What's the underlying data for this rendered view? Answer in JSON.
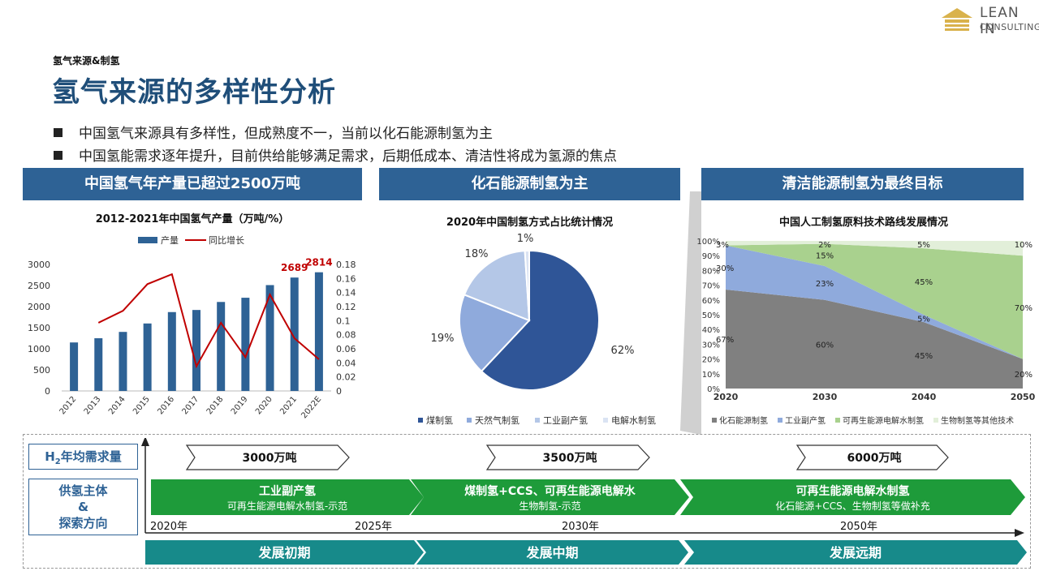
{
  "header": {
    "kicker": "氢气来源&制氢",
    "title": "氢气来源的多样性分析",
    "logo_line1": "LEAN IN",
    "logo_line2": "CONSULTING"
  },
  "bullets": [
    "中国氢气来源具有多样性，但成熟度不一，当前以化石能源制氢为主",
    "中国氢能需求逐年提升，目前供给能够满足需求，后期低成本、清洁性将成为氢源的焦点"
  ],
  "panels": {
    "p1_head": "中国氢气年产量已超过2500万吨",
    "p2_head": "化石能源制氢为主",
    "p3_head": "清洁能源制氢为最终目标"
  },
  "chart_data": [
    {
      "type": "bar",
      "title": "2012-2021年中国氢气产量（万吨/%）",
      "categories": [
        "2012",
        "2013",
        "2014",
        "2015",
        "2016",
        "2017",
        "2018",
        "2019",
        "2020",
        "2021",
        "2022E"
      ],
      "series": [
        {
          "name": "产量",
          "type": "bar",
          "axis": "left",
          "values": [
            1150,
            1250,
            1400,
            1600,
            1870,
            1920,
            2110,
            2210,
            2510,
            2689,
            2814
          ]
        },
        {
          "name": "同比增长",
          "type": "line",
          "axis": "right",
          "values": [
            null,
            0.097,
            0.114,
            0.152,
            0.166,
            0.035,
            0.097,
            0.048,
            0.137,
            0.075,
            0.045
          ]
        }
      ],
      "data_labels": [
        {
          "index": 9,
          "text": "2689"
        },
        {
          "index": 10,
          "text": "2814"
        }
      ],
      "ylim_left": [
        0,
        3000
      ],
      "yticks_left": [
        "0",
        "500",
        "1000",
        "1500",
        "2000",
        "2500",
        "3000"
      ],
      "ylim_right": [
        0,
        0.18
      ],
      "yticks_right": [
        "0",
        "0.02",
        "0.04",
        "0.06",
        "0.08",
        "0.1",
        "0.12",
        "0.14",
        "0.16",
        "0.18"
      ],
      "legend_position": "top",
      "colors": {
        "bar": "#2e6295",
        "line": "#c00000"
      }
    },
    {
      "type": "pie",
      "title": "2020年中国制氢方式占比统计情况",
      "slices": [
        {
          "name": "煤制氢",
          "value": 62,
          "label": "62%",
          "color": "#2f5597"
        },
        {
          "name": "天然气制氢",
          "value": 19,
          "label": "19%",
          "color": "#8faadc"
        },
        {
          "name": "工业副产氢",
          "value": 18,
          "label": "18%",
          "color": "#b4c7e7"
        },
        {
          "name": "电解水制氢",
          "value": 1,
          "label": "1%",
          "color": "#dae3f3"
        }
      ],
      "legend_position": "bottom"
    },
    {
      "type": "area",
      "title": "中国人工制氢原料技术路线发展情况",
      "x": [
        "2020",
        "2030",
        "2040",
        "2050"
      ],
      "series": [
        {
          "name": "化石能源制氢",
          "values": [
            67,
            60,
            45,
            20
          ],
          "labels": [
            "67%",
            "60%",
            "45%",
            "20%"
          ],
          "color": "#808080"
        },
        {
          "name": "工业副产氢",
          "values": [
            30,
            23,
            5,
            0
          ],
          "labels": [
            "30%",
            "23%",
            "5%",
            ""
          ],
          "color": "#8faadc"
        },
        {
          "name": "可再生能源电解水制氢",
          "values": [
            0,
            15,
            45,
            70
          ],
          "labels": [
            "",
            "15%",
            "45%",
            "70%"
          ],
          "color": "#a9d18e"
        },
        {
          "name": "生物制氢等其他技术",
          "values": [
            3,
            2,
            5,
            10
          ],
          "labels": [
            "3%",
            "2%",
            "5%",
            "10%"
          ],
          "color": "#e2efd9"
        }
      ],
      "ylim": [
        0,
        100
      ],
      "yticks": [
        "0%",
        "10%",
        "20%",
        "30%",
        "40%",
        "50%",
        "60%",
        "70%",
        "80%",
        "90%",
        "100%"
      ],
      "legend_position": "bottom"
    }
  ],
  "timeline": {
    "row1_label": "H",
    "row1_sub": "2",
    "row1_rest": "年均需求量",
    "row2_label_lines": [
      "供氢主体",
      "&",
      "探索方向"
    ],
    "demand": [
      "3000万吨",
      "3500万吨",
      "6000万吨"
    ],
    "phases": [
      {
        "main": "工业副产氢",
        "sub": "可再生能源电解水制氢-示范"
      },
      {
        "main": "煤制氢+CCS、可再生能源电解水",
        "sub": "生物制氢-示范"
      },
      {
        "main": "可再生能源电解水制氢",
        "sub": "化石能源+CCS、生物制氢等做补充"
      }
    ],
    "years": [
      "2020年",
      "2025年",
      "2030年",
      "2050年"
    ],
    "stages": [
      "发展初期",
      "发展中期",
      "发展远期"
    ]
  }
}
